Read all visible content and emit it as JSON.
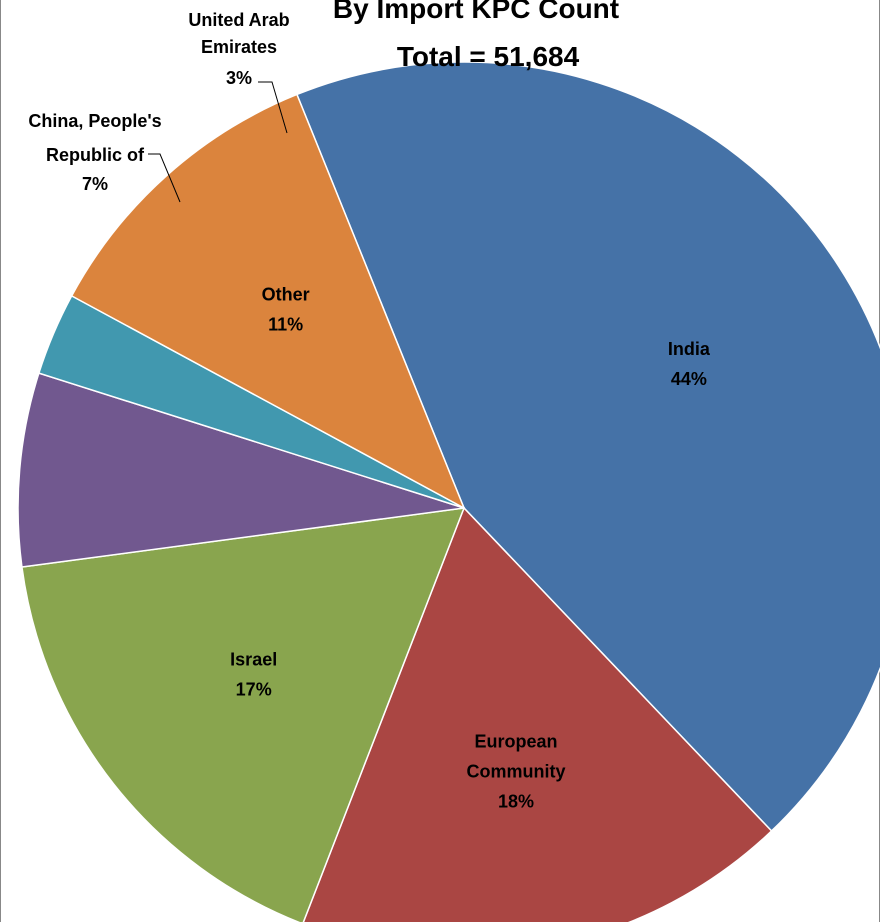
{
  "chart_data": {
    "type": "pie",
    "title_line1": "By Import KPC Count",
    "title_line2": "Total = 51,684",
    "start_angle_deg": -22,
    "slices": [
      {
        "label": [
          "India"
        ],
        "percent": 44,
        "percent_label": "44%",
        "color": "#4572A7",
        "label_pos": "inside"
      },
      {
        "label": [
          "European",
          "Community"
        ],
        "percent": 18,
        "percent_label": "18%",
        "color": "#AA4643",
        "label_pos": "inside"
      },
      {
        "label": [
          "Israel"
        ],
        "percent": 17,
        "percent_label": "17%",
        "color": "#89A54E",
        "label_pos": "inside"
      },
      {
        "label": [
          "China, People's",
          "Republic of"
        ],
        "percent": 7,
        "percent_label": "7%",
        "color": "#71588F",
        "label_pos": "outside"
      },
      {
        "label": [
          "United Arab",
          "Emirates"
        ],
        "percent": 3,
        "percent_label": "3%",
        "color": "#4198AF",
        "label_pos": "outside"
      },
      {
        "label": [
          "Other"
        ],
        "percent": 11,
        "percent_label": "11%",
        "color": "#DB843D",
        "label_pos": "inside"
      }
    ]
  }
}
